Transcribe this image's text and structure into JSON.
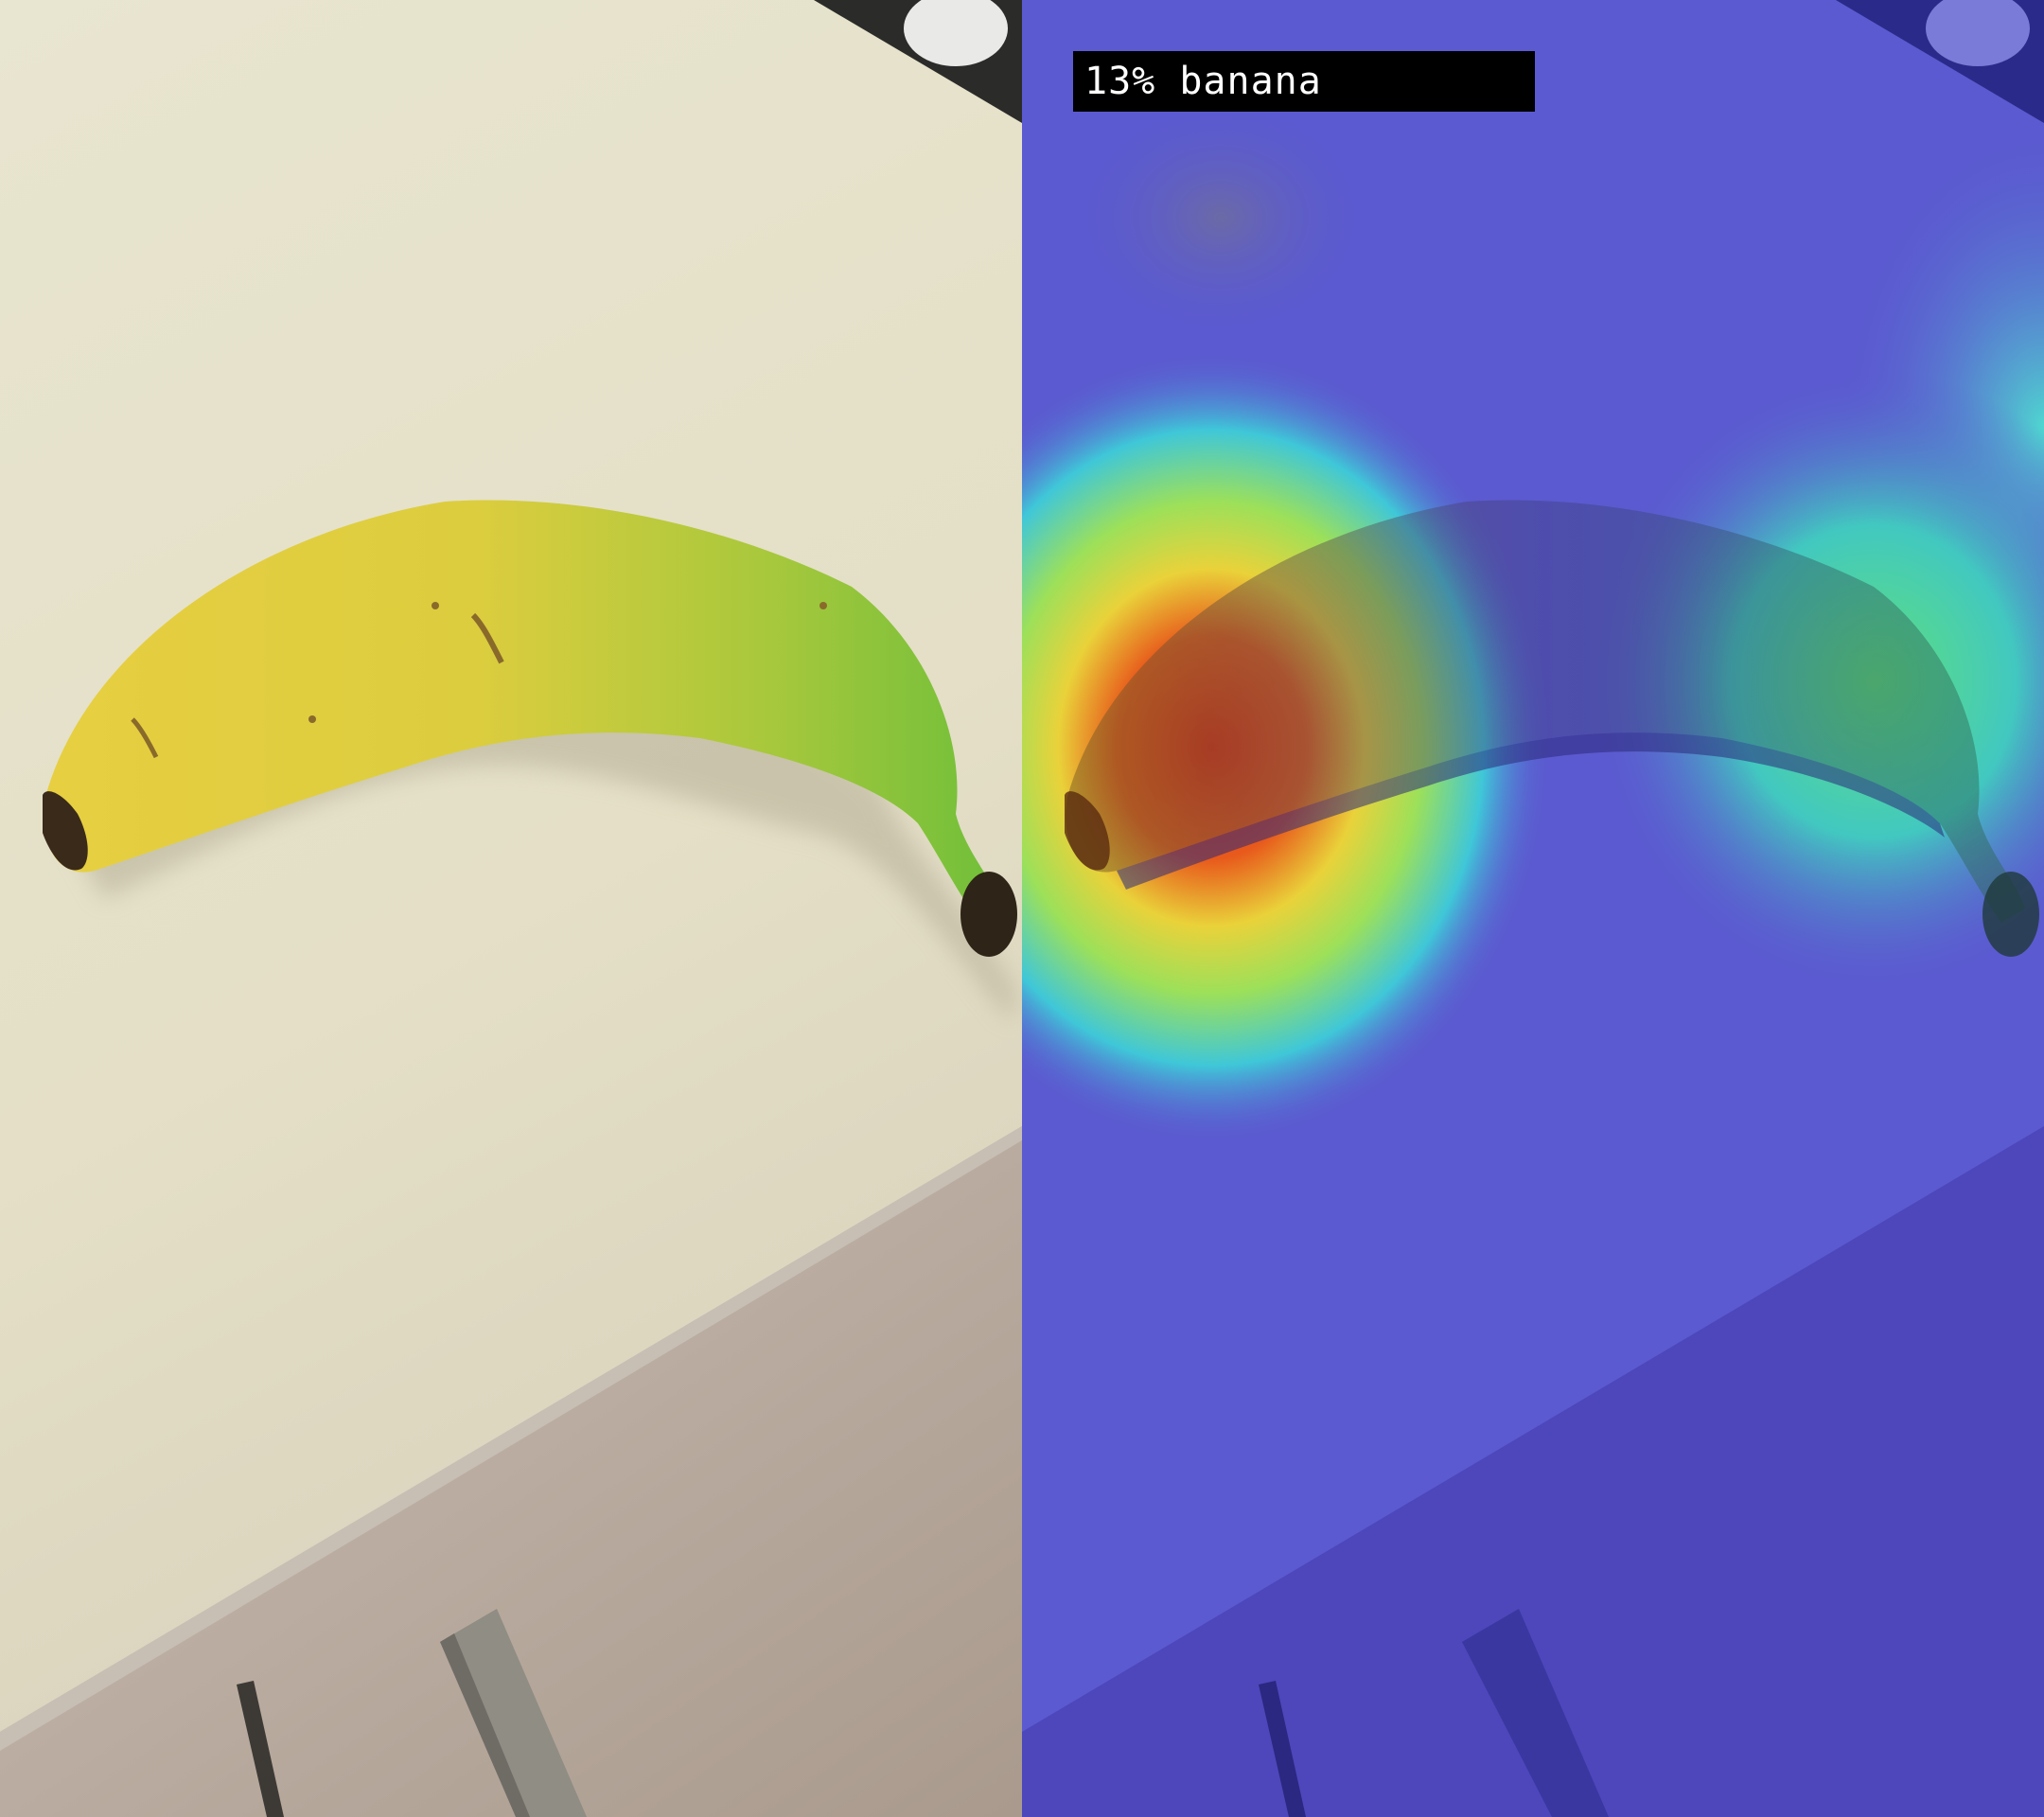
{
  "overlay": {
    "label": "13% banana"
  },
  "colors": {
    "label_bg": "#000000",
    "label_text": "#ffffff",
    "countertop": "#e6e1c8",
    "cabinet": "#bfb1a5",
    "banana_yellow": "#e3cf3c",
    "banana_green": "#78c23a",
    "heatmap_low": "#5b5ad0",
    "heatmap_high": "#e23a18"
  },
  "panels": {
    "left": {
      "content": "photo"
    },
    "right": {
      "content": "heatmap-overlay"
    }
  }
}
